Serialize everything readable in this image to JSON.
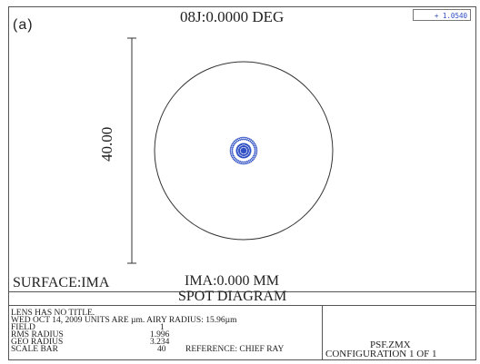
{
  "panel_label": "(a)",
  "plot": {
    "title": "08J:0.0000 DEG",
    "legend_value": "+ 1.0540",
    "scale_label": "40.00",
    "surface": "SURFACE:IMA",
    "image_position": "IMA:0.000 MM",
    "diagram_title": "SPOT DIAGRAM",
    "colors": {
      "spot": "#2b4cc2",
      "circle": "#333333"
    }
  },
  "info": {
    "line1": "LENS HAS NO TITLE.",
    "line2": "WED OCT 14, 2009 UNITS ARE µm.  AIRY RADIUS: 15.96µm",
    "field_label": "FIELD",
    "field_value": "1",
    "rms_label": "RMS RADIUS",
    "rms_value": "1.996",
    "geo_label": "GEO RADIUS",
    "geo_value": "3.234",
    "scale_label": "SCALE BAR",
    "scale_value": "40",
    "reference": "REFERENCE: CHIEF RAY",
    "file_name": "PSF.ZMX",
    "configuration": "CONFIGURATION 1 OF 1"
  }
}
